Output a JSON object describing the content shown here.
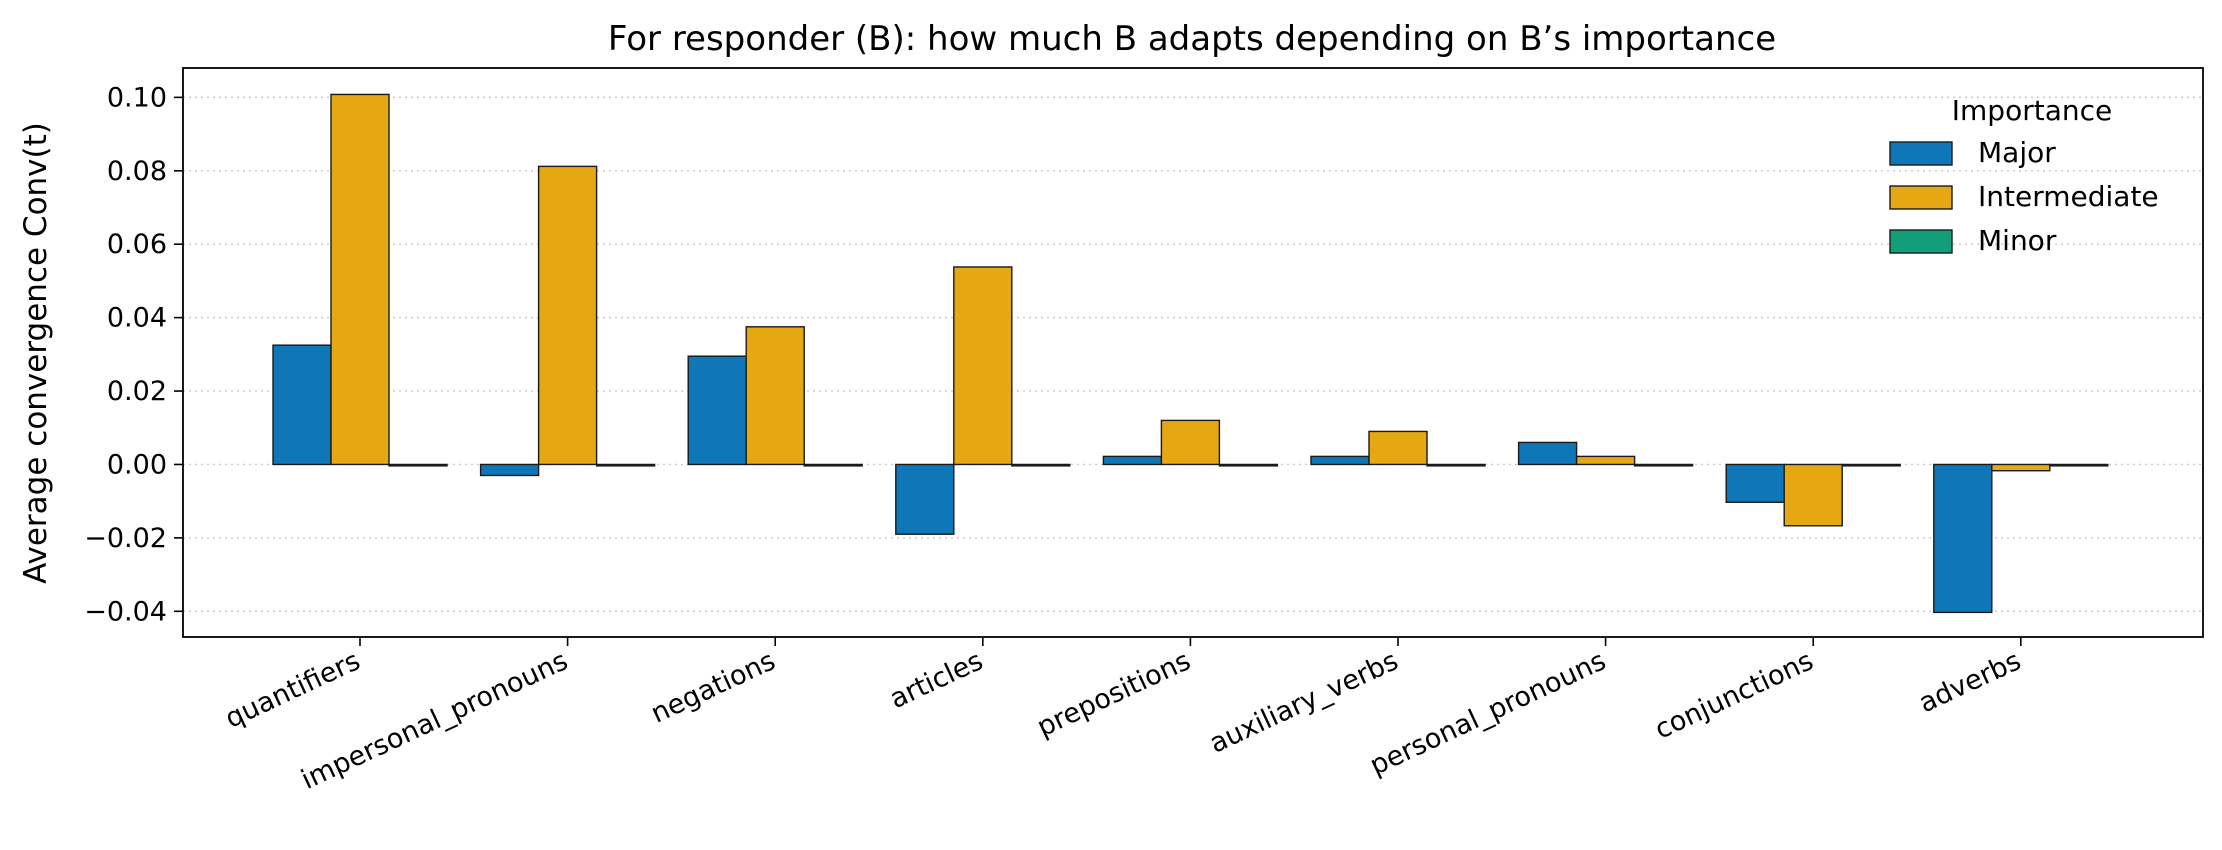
{
  "chart_data": {
    "type": "bar",
    "title": "For responder (B): how much B adapts depending on B’s importance",
    "xlabel": "",
    "ylabel": "Average convergence  Conv(t)",
    "categories": [
      "quantifiers",
      "impersonal_pronouns",
      "negations",
      "articles",
      "prepositions",
      "auxiliary_verbs",
      "personal_pronouns",
      "conjunctions",
      "adverbs"
    ],
    "series": [
      {
        "name": "Major",
        "color": "#0f77b7",
        "values": [
          0.0325,
          -0.003,
          0.0295,
          -0.019,
          0.0022,
          0.0022,
          0.006,
          -0.0103,
          -0.0403
        ]
      },
      {
        "name": "Intermediate",
        "color": "#e5a712",
        "values": [
          0.1008,
          0.0812,
          0.0375,
          0.0538,
          0.012,
          0.009,
          0.0022,
          -0.0167,
          -0.0017
        ]
      },
      {
        "name": "Minor",
        "color": "#119e78",
        "values": [
          0,
          0,
          0,
          0,
          0,
          0,
          0,
          0,
          0
        ]
      }
    ],
    "ylim": [
      -0.047,
      0.108
    ],
    "yticks": [
      "−0.04",
      "−0.02",
      "0.00",
      "0.02",
      "0.04",
      "0.06",
      "0.08",
      "0.10"
    ],
    "ytick_values": [
      -0.04,
      -0.02,
      0,
      0.02,
      0.04,
      0.06,
      0.08,
      0.1
    ],
    "grid": "y-dotted",
    "legend": {
      "title": "Importance",
      "placement": "top-right"
    }
  }
}
